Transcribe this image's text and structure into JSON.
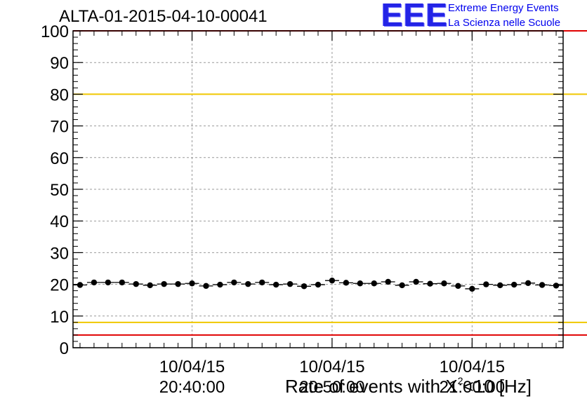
{
  "title": "ALTA-01-2015-04-10-00041",
  "logo": {
    "mark": "EEE",
    "line1": "Extreme Energy Events",
    "line2": "La Scienza nelle Scuole"
  },
  "chart_data": {
    "type": "scatter",
    "ylabel_prefix": "Rate of events with X",
    "ylabel_sup": "2",
    "ylabel_suffix": "<10 [Hz]",
    "xlabel": "",
    "ylim": [
      0,
      100
    ],
    "yticks": [
      0,
      10,
      20,
      30,
      40,
      50,
      60,
      70,
      80,
      90,
      100
    ],
    "xlim": [
      "2015-04-10 20:31:30",
      "2015-04-10 21:06:30"
    ],
    "xticks": [
      {
        "date": "10/04/15",
        "time": "20:40:00"
      },
      {
        "date": "10/04/15",
        "time": "20:50:00"
      },
      {
        "date": "10/04/15",
        "time": "21:00:00"
      }
    ],
    "grid": true,
    "reference_lines": [
      {
        "value": 80,
        "color": "#f0c800"
      },
      {
        "value": 8,
        "color": "#f0c800"
      },
      {
        "value": 100,
        "color": "#e00000"
      },
      {
        "value": 4,
        "color": "#e00000"
      }
    ],
    "marker_color": "#000000",
    "x": [
      "20:32:00",
      "20:33:00",
      "20:34:00",
      "20:35:00",
      "20:36:00",
      "20:37:00",
      "20:38:00",
      "20:39:00",
      "20:40:00",
      "20:41:00",
      "20:42:00",
      "20:43:00",
      "20:44:00",
      "20:45:00",
      "20:46:00",
      "20:47:00",
      "20:48:00",
      "20:49:00",
      "20:50:00",
      "20:51:00",
      "20:52:00",
      "20:53:00",
      "20:54:00",
      "20:55:00",
      "20:56:00",
      "20:57:00",
      "20:58:00",
      "20:59:00",
      "21:00:00",
      "21:01:00",
      "21:02:00",
      "21:03:00",
      "21:04:00",
      "21:05:00",
      "21:06:00"
    ],
    "values": [
      19.8,
      20.6,
      20.6,
      20.6,
      20.1,
      19.7,
      20.1,
      20.1,
      20.3,
      19.5,
      19.9,
      20.6,
      20.1,
      20.6,
      19.9,
      20.1,
      19.4,
      19.9,
      21.2,
      20.5,
      20.3,
      20.3,
      20.8,
      19.7,
      20.8,
      20.2,
      20.3,
      19.5,
      18.6,
      20.0,
      19.7,
      19.9,
      20.4,
      19.8,
      19.6
    ]
  }
}
